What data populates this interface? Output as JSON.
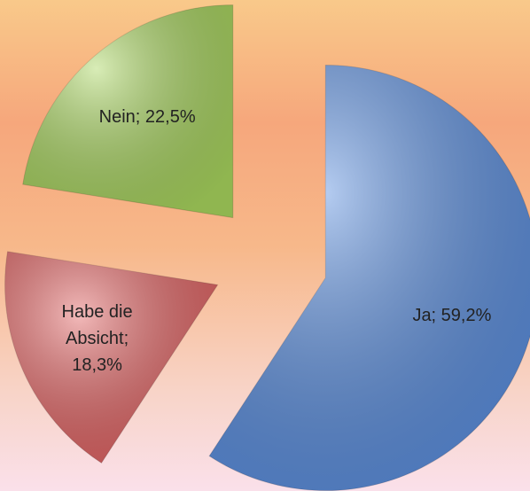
{
  "chart_data": {
    "type": "pie",
    "values": [
      59.2,
      18.3,
      22.5
    ],
    "value_labels": [
      "Ja; 59,2%",
      "Habe die Absicht; 18,3%",
      "Nein; 22,5%"
    ],
    "colors": [
      "#5b8fe0",
      "#e46464",
      "#a9d65e"
    ]
  }
}
